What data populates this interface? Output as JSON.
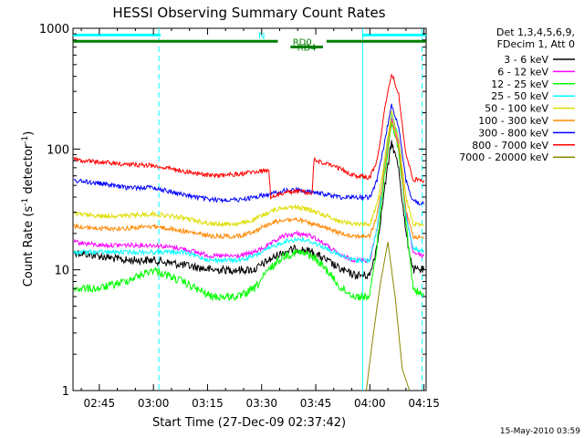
{
  "chart_data": {
    "type": "line",
    "title": "HESSI Observing Summary Count Rates",
    "xlabel": "Start Time (27-Dec-09 02:37:42)",
    "ylabel_main": "Count Rate (s",
    "ylabel_sup1": "-1",
    "ylabel_mid": " detector",
    "ylabel_sup2": "-1",
    "ylabel_end": ")",
    "yscale": "log",
    "xlim": [
      157.7,
      255.6
    ],
    "ylim": [
      1,
      1000
    ],
    "xticks": [
      {
        "v": 165,
        "label": "02:45"
      },
      {
        "v": 180,
        "label": "03:00"
      },
      {
        "v": 195,
        "label": "03:15"
      },
      {
        "v": 210,
        "label": "03:30"
      },
      {
        "v": 225,
        "label": "03:45"
      },
      {
        "v": 240,
        "label": "04:00"
      },
      {
        "v": 255,
        "label": "04:15"
      }
    ],
    "yticks": [
      {
        "v": 1,
        "label": "1"
      },
      {
        "v": 10,
        "label": "10"
      },
      {
        "v": 100,
        "label": "100"
      },
      {
        "v": 1000,
        "label": "1000"
      }
    ],
    "legend_header": [
      "Det 1,3,4,5,6,9,",
      "FDecim 1, Att 0"
    ],
    "series": [
      {
        "name": "3 - 6 keV",
        "color": "#000000",
        "x": [
          158,
          165,
          172,
          180,
          188,
          196,
          204,
          208,
          212,
          216,
          220,
          224,
          228,
          232,
          236,
          240,
          242,
          244,
          246,
          248,
          250,
          252,
          255
        ],
        "y": [
          14,
          13,
          12,
          12,
          11,
          10,
          10,
          10,
          12,
          14,
          15,
          14,
          12,
          10,
          9,
          9,
          16,
          45,
          115,
          70,
          20,
          10,
          10
        ]
      },
      {
        "name": "6 - 12 keV",
        "color": "#ff00ff",
        "x": [
          158,
          165,
          172,
          180,
          188,
          196,
          204,
          208,
          212,
          216,
          220,
          224,
          228,
          232,
          236,
          240,
          242,
          244,
          246,
          248,
          250,
          252,
          255
        ],
        "y": [
          17,
          16,
          16,
          16,
          15,
          13,
          13,
          14,
          16,
          19,
          20,
          19,
          16,
          13,
          12,
          12,
          22,
          70,
          185,
          110,
          30,
          14,
          13
        ]
      },
      {
        "name": "12 - 25 keV",
        "color": "#00ff00",
        "x": [
          158,
          165,
          172,
          180,
          188,
          196,
          204,
          208,
          212,
          216,
          220,
          224,
          228,
          232,
          236,
          240,
          242,
          244,
          246,
          248,
          250,
          252,
          255
        ],
        "y": [
          7,
          7,
          8,
          10,
          8,
          6,
          6,
          7,
          10,
          13,
          14,
          13,
          10,
          7,
          6,
          6,
          16,
          60,
          165,
          100,
          25,
          7,
          6
        ]
      },
      {
        "name": "25 - 50 keV",
        "color": "#00ffff",
        "x": [
          158,
          165,
          172,
          180,
          188,
          196,
          204,
          208,
          212,
          216,
          220,
          224,
          228,
          232,
          236,
          240,
          242,
          244,
          246,
          248,
          250,
          252,
          255
        ],
        "y": [
          14,
          14,
          14,
          14,
          14,
          12,
          12,
          13,
          15,
          17,
          18,
          17,
          15,
          13,
          12,
          12,
          22,
          70,
          200,
          120,
          28,
          15,
          14
        ]
      },
      {
        "name": "50 - 100 keV",
        "color": "#dddd00",
        "x": [
          158,
          165,
          172,
          180,
          188,
          196,
          204,
          208,
          212,
          216,
          220,
          224,
          228,
          232,
          236,
          240,
          242,
          244,
          246,
          248,
          250,
          252,
          255
        ],
        "y": [
          29,
          28,
          28,
          29,
          27,
          24,
          24,
          26,
          30,
          33,
          33,
          31,
          28,
          25,
          24,
          24,
          35,
          80,
          205,
          120,
          40,
          24,
          23
        ]
      },
      {
        "name": "100 - 300 keV",
        "color": "#ff8800",
        "x": [
          158,
          165,
          172,
          180,
          188,
          196,
          204,
          208,
          212,
          216,
          220,
          224,
          228,
          232,
          236,
          240,
          242,
          244,
          246,
          248,
          250,
          252,
          255
        ],
        "y": [
          23,
          22,
          22,
          23,
          21,
          19,
          19,
          21,
          24,
          26,
          26,
          24,
          22,
          20,
          19,
          19,
          28,
          65,
          175,
          105,
          32,
          19,
          18
        ]
      },
      {
        "name": "300 - 800 keV",
        "color": "#0000ff",
        "x": [
          158,
          165,
          172,
          180,
          188,
          196,
          204,
          208,
          212,
          216,
          220,
          224,
          228,
          232,
          236,
          240,
          242,
          244,
          246,
          248,
          250,
          252,
          255
        ],
        "y": [
          55,
          52,
          48,
          48,
          42,
          38,
          38,
          40,
          42,
          45,
          46,
          44,
          42,
          40,
          40,
          40,
          55,
          110,
          240,
          150,
          55,
          37,
          35
        ]
      },
      {
        "name": "800 - 7000 keV",
        "color": "#ff0000",
        "x": [
          158,
          165,
          172,
          180,
          188,
          196,
          204,
          208,
          212,
          212.5,
          216,
          220,
          224,
          224.5,
          228,
          232,
          236,
          240,
          242,
          244,
          246,
          248,
          250,
          252,
          255
        ],
        "y": [
          82,
          78,
          75,
          73,
          66,
          60,
          62,
          65,
          66,
          40,
          43,
          45,
          42,
          82,
          75,
          68,
          60,
          58,
          80,
          200,
          430,
          280,
          90,
          56,
          55
        ]
      },
      {
        "name": "7000 - 20000 keV",
        "color": "#888800",
        "x": [
          239,
          241,
          243,
          245,
          247,
          249,
          251
        ],
        "y": [
          1,
          3,
          8,
          17,
          6,
          1.5,
          1
        ]
      }
    ],
    "flags": [
      {
        "label": "N",
        "color": "#00ffff",
        "y": 880,
        "segments": [
          [
            157.7,
            182
          ],
          [
            238,
            255.6
          ]
        ]
      },
      {
        "label": "RD0",
        "color": "#008000",
        "y": 780,
        "segments": [
          [
            157.7,
            214.5
          ],
          [
            228,
            255.6
          ]
        ]
      },
      {
        "label": "RD4",
        "color": "#008000",
        "y": 700,
        "segments": [
          [
            218,
            227
          ]
        ]
      }
    ],
    "vlines": [
      {
        "x": 181.5,
        "color": "#00ffff",
        "dash": true
      },
      {
        "x": 238,
        "color": "#00ffff",
        "dash": false
      },
      {
        "x": 254.5,
        "color": "#00ffff",
        "dash": true
      }
    ],
    "timestamp": "15-May-2010 03:59"
  }
}
